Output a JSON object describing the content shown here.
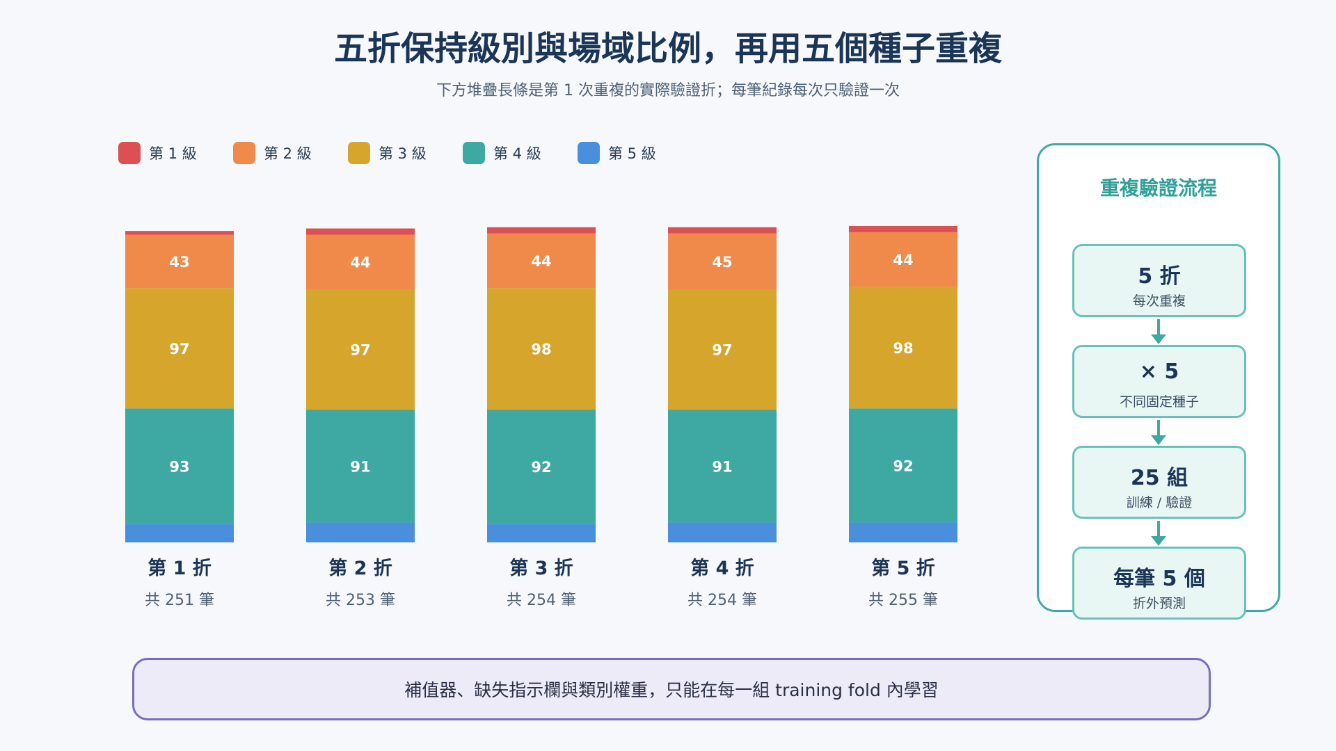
{
  "title": "五折保持級別與場域比例，再用五個種子重複",
  "subtitle": "下方堆疊長條是第 1 次重複的實際驗證折；每筆紀錄每次只驗證一次",
  "chart_data": {
    "type": "bar",
    "stacked": true,
    "categories": [
      "第 1 折",
      "第 2 折",
      "第 3 折",
      "第 4 折",
      "第 5 折"
    ],
    "totals_labels": [
      "共 251 筆",
      "共 253 筆",
      "共 254 筆",
      "共 254 筆",
      "共 255 筆"
    ],
    "totals": [
      251,
      253,
      254,
      254,
      255
    ],
    "series": [
      {
        "name": "第 5 級",
        "color": "#4a8fdc",
        "values": [
          15,
          16,
          15,
          16,
          16
        ],
        "show_labels": false
      },
      {
        "name": "第 4 級",
        "color": "#3ea8a3",
        "values": [
          93,
          91,
          92,
          91,
          92
        ],
        "show_labels": true
      },
      {
        "name": "第 3 級",
        "color": "#d6a52c",
        "values": [
          97,
          97,
          98,
          97,
          98
        ],
        "show_labels": true
      },
      {
        "name": "第 2 級",
        "color": "#f08a4b",
        "values": [
          43,
          44,
          44,
          45,
          44
        ],
        "show_labels": true
      },
      {
        "name": "第 1 級",
        "color": "#dc4f52",
        "values": [
          3,
          5,
          5,
          5,
          5
        ],
        "show_labels": false
      }
    ],
    "legend_order": [
      "第 1 級",
      "第 2 級",
      "第 3 級",
      "第 4 級",
      "第 5 級"
    ],
    "legend_position": "top-left",
    "ylim": [
      0,
      255
    ]
  },
  "panel": {
    "title": "重複驗證流程",
    "steps": [
      {
        "value": "5 折",
        "label": "每次重複"
      },
      {
        "value": "× 5",
        "label": "不同固定種子"
      },
      {
        "value": "25 組",
        "label": "訓練 / 驗證"
      },
      {
        "value": "每筆 5 個",
        "label": "折外預測"
      }
    ]
  },
  "note": "補值器、缺失指示欄與類別權重，只能在每一組 training fold 內學習"
}
